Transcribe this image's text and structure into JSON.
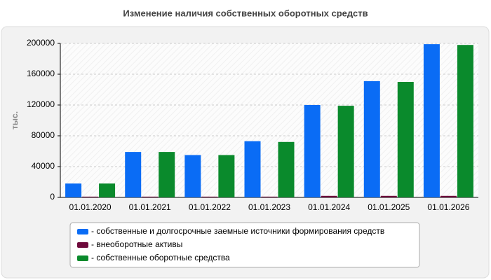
{
  "chart_data": {
    "type": "bar",
    "title": "Изменение наличия собственных оборотных средств",
    "y_label": "тыс.",
    "categories": [
      "01.01.2020",
      "01.01.2021",
      "01.01.2022",
      "01.01.2023",
      "01.01.2024",
      "01.01.2025",
      "01.01.2026"
    ],
    "series": [
      {
        "name": "- собственные и долгосрочные заемные источники формирования средств",
        "color": "#0a6cf5",
        "values": [
          18000,
          59000,
          55000,
          73000,
          120000,
          151000,
          199000
        ]
      },
      {
        "name": "- внеоборотные активы",
        "color": "#6e0a3c",
        "values": [
          1000,
          1000,
          1000,
          1000,
          2000,
          2000,
          2000
        ]
      },
      {
        "name": "- собственные оборотные средства",
        "color": "#0a8a2c",
        "values": [
          18000,
          59000,
          55000,
          72000,
          119000,
          150000,
          198000
        ]
      }
    ],
    "ylim": [
      0,
      200000
    ],
    "yticks": [
      0,
      40000,
      80000,
      120000,
      160000,
      200000
    ],
    "grid": true
  }
}
